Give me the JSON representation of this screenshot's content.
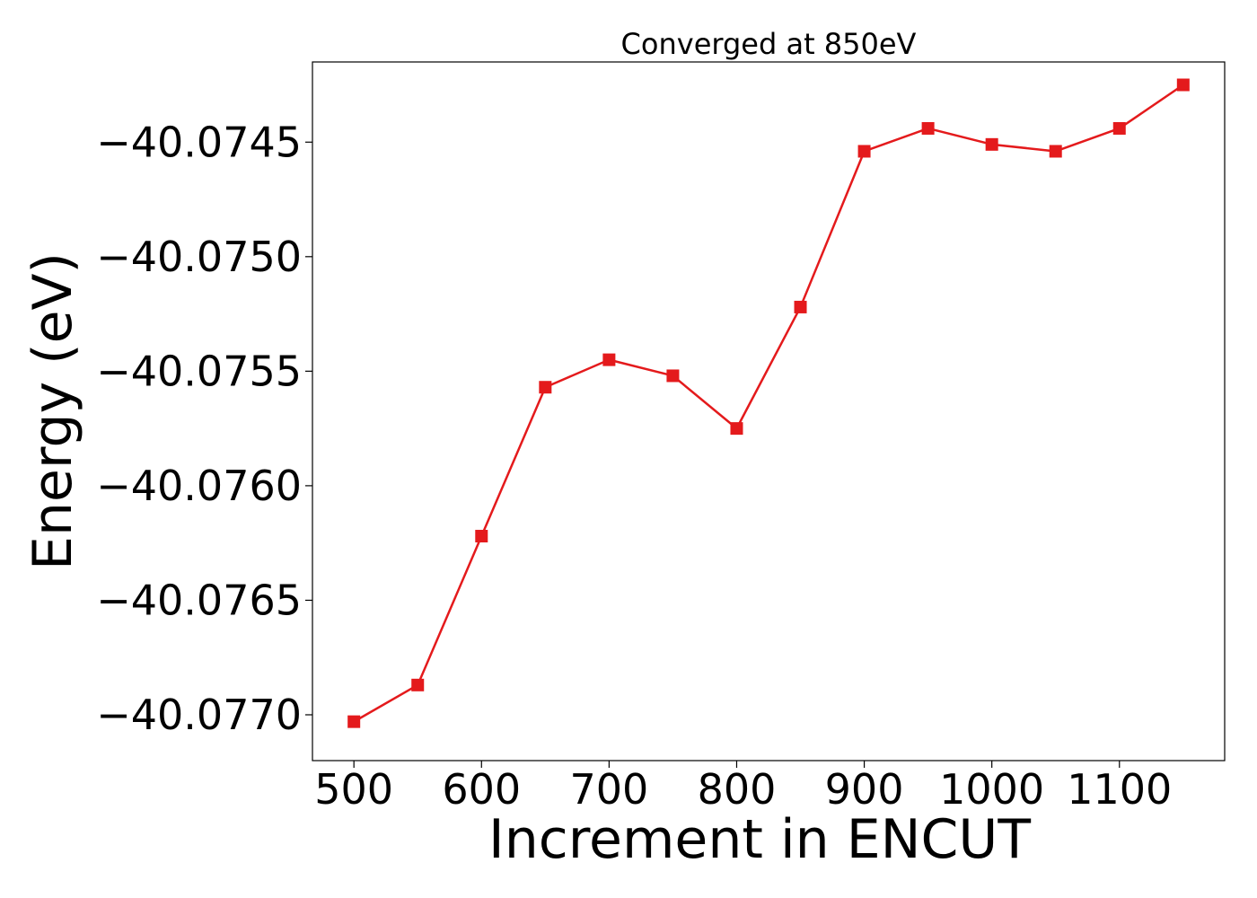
{
  "chart_data": {
    "type": "line",
    "title": "Converged at 850eV",
    "xlabel": "Increment in ENCUT",
    "ylabel": "Energy (eV)",
    "x": [
      500,
      550,
      600,
      650,
      700,
      750,
      800,
      850,
      900,
      950,
      1000,
      1050,
      1100,
      1150
    ],
    "series": [
      {
        "values": [
          -40.07703,
          -40.07687,
          -40.07622,
          -40.07557,
          -40.07545,
          -40.07552,
          -40.07575,
          -40.07522,
          -40.07454,
          -40.07444,
          -40.07451,
          -40.07454,
          -40.07444,
          -40.07425
        ],
        "color": "#e41a1c",
        "marker": "square"
      }
    ],
    "x_ticks": [
      "500",
      "600",
      "700",
      "800",
      "900",
      "1000",
      "1100"
    ],
    "x_tick_values": [
      500,
      600,
      700,
      800,
      900,
      1000,
      1100
    ],
    "y_ticks": [
      "−40.0745",
      "−40.0750",
      "−40.0755",
      "−40.0760",
      "−40.0765",
      "−40.0770"
    ],
    "y_tick_values": [
      -40.0745,
      -40.075,
      -40.0755,
      -40.076,
      -40.0765,
      -40.077
    ],
    "xlim": [
      467.5,
      1182.5
    ],
    "ylim": [
      -40.0772,
      -40.07415
    ],
    "grid": false,
    "legend": false
  }
}
